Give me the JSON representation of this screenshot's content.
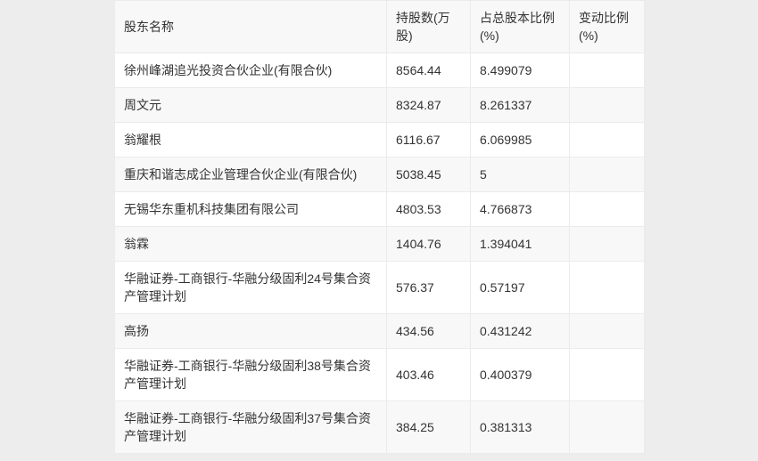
{
  "colors": {
    "page_background": "#ededed",
    "row_stripe": "#f8f8f8",
    "row_plain": "#ffffff",
    "border": "#ebebeb",
    "text": "#333333"
  },
  "table": {
    "columns": [
      {
        "label": "股东名称"
      },
      {
        "label": "持股数(万股)"
      },
      {
        "label": "占总股本比例(%)"
      },
      {
        "label": "变动比例(%)"
      }
    ],
    "rows": [
      {
        "name": "徐州峰湖追光投资合伙企业(有限合伙)",
        "shares": "8564.44",
        "ratio": "8.499079",
        "change": ""
      },
      {
        "name": "周文元",
        "shares": "8324.87",
        "ratio": "8.261337",
        "change": ""
      },
      {
        "name": "翁耀根",
        "shares": "6116.67",
        "ratio": "6.069985",
        "change": ""
      },
      {
        "name": "重庆和谐志成企业管理合伙企业(有限合伙)",
        "shares": "5038.45",
        "ratio": "5",
        "change": ""
      },
      {
        "name": "无锡华东重机科技集团有限公司",
        "shares": "4803.53",
        "ratio": "4.766873",
        "change": ""
      },
      {
        "name": "翁霖",
        "shares": "1404.76",
        "ratio": "1.394041",
        "change": ""
      },
      {
        "name": "华融证券-工商银行-华融分级固利24号集合资产管理计划",
        "shares": "576.37",
        "ratio": "0.57197",
        "change": ""
      },
      {
        "name": "高扬",
        "shares": "434.56",
        "ratio": "0.431242",
        "change": ""
      },
      {
        "name": "华融证券-工商银行-华融分级固利38号集合资产管理计划",
        "shares": "403.46",
        "ratio": "0.400379",
        "change": ""
      },
      {
        "name": "华融证券-工商银行-华融分级固利37号集合资产管理计划",
        "shares": "384.25",
        "ratio": "0.381313",
        "change": ""
      }
    ]
  },
  "chart_data": {
    "type": "table",
    "title": "",
    "columns": [
      "股东名称",
      "持股数(万股)",
      "占总股本比例(%)",
      "变动比例(%)"
    ],
    "rows": [
      [
        "徐州峰湖追光投资合伙企业(有限合伙)",
        8564.44,
        8.499079,
        ""
      ],
      [
        "周文元",
        8324.87,
        8.261337,
        ""
      ],
      [
        "翁耀根",
        6116.67,
        6.069985,
        ""
      ],
      [
        "重庆和谐志成企业管理合伙企业(有限合伙)",
        5038.45,
        5,
        ""
      ],
      [
        "无锡华东重机科技集团有限公司",
        4803.53,
        4.766873,
        ""
      ],
      [
        "翁霖",
        1404.76,
        1.394041,
        ""
      ],
      [
        "华融证券-工商银行-华融分级固利24号集合资产管理计划",
        576.37,
        0.57197,
        ""
      ],
      [
        "高扬",
        434.56,
        0.431242,
        ""
      ],
      [
        "华融证券-工商银行-华融分级固利38号集合资产管理计划",
        403.46,
        0.400379,
        ""
      ],
      [
        "华融证券-工商银行-华融分级固利37号集合资产管理计划",
        384.25,
        0.381313,
        ""
      ]
    ],
    "layout": {
      "zebra_striping": true,
      "header_row": true,
      "empty_last_column": true
    }
  }
}
